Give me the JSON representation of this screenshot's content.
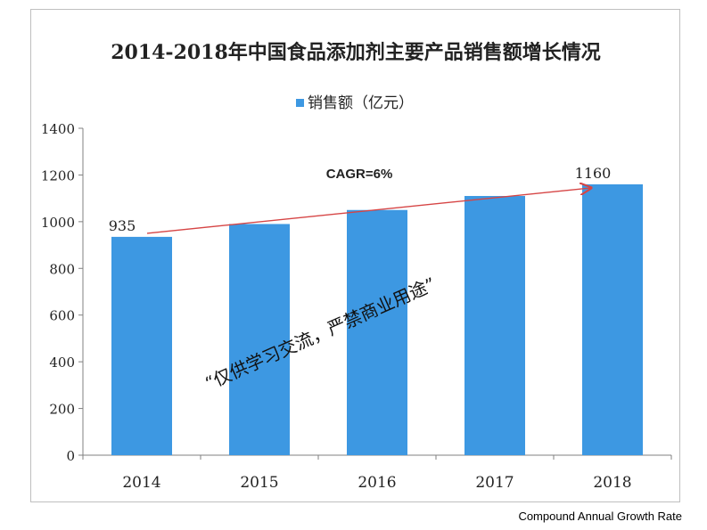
{
  "chart_data": {
    "type": "bar",
    "title": "2014-2018年中国食品添加剂主要产品销售额增长情况",
    "legend": {
      "label": "销售额（亿元）",
      "placement": "top-center"
    },
    "categories": [
      "2014",
      "2015",
      "2016",
      "2017",
      "2018"
    ],
    "series": [
      {
        "name": "销售额（亿元）",
        "values": [
          935,
          990,
          1050,
          1110,
          1160
        ]
      }
    ],
    "data_labels": {
      "2014": "935",
      "2018": "1160"
    },
    "ylim": [
      0,
      1400
    ],
    "yticks": [
      0,
      200,
      400,
      600,
      800,
      1000,
      1200,
      1400
    ],
    "xlabel": "",
    "ylabel": "",
    "grid": false,
    "bar_color": "#3d98e2",
    "trend_line": {
      "label": "CAGR=6%",
      "from_value": 935,
      "to_value": 1160,
      "color": "#d64545"
    },
    "annotation": "“仅供学习交流，严禁商业用途”"
  },
  "caption": "Compound Annual Growth Rate"
}
